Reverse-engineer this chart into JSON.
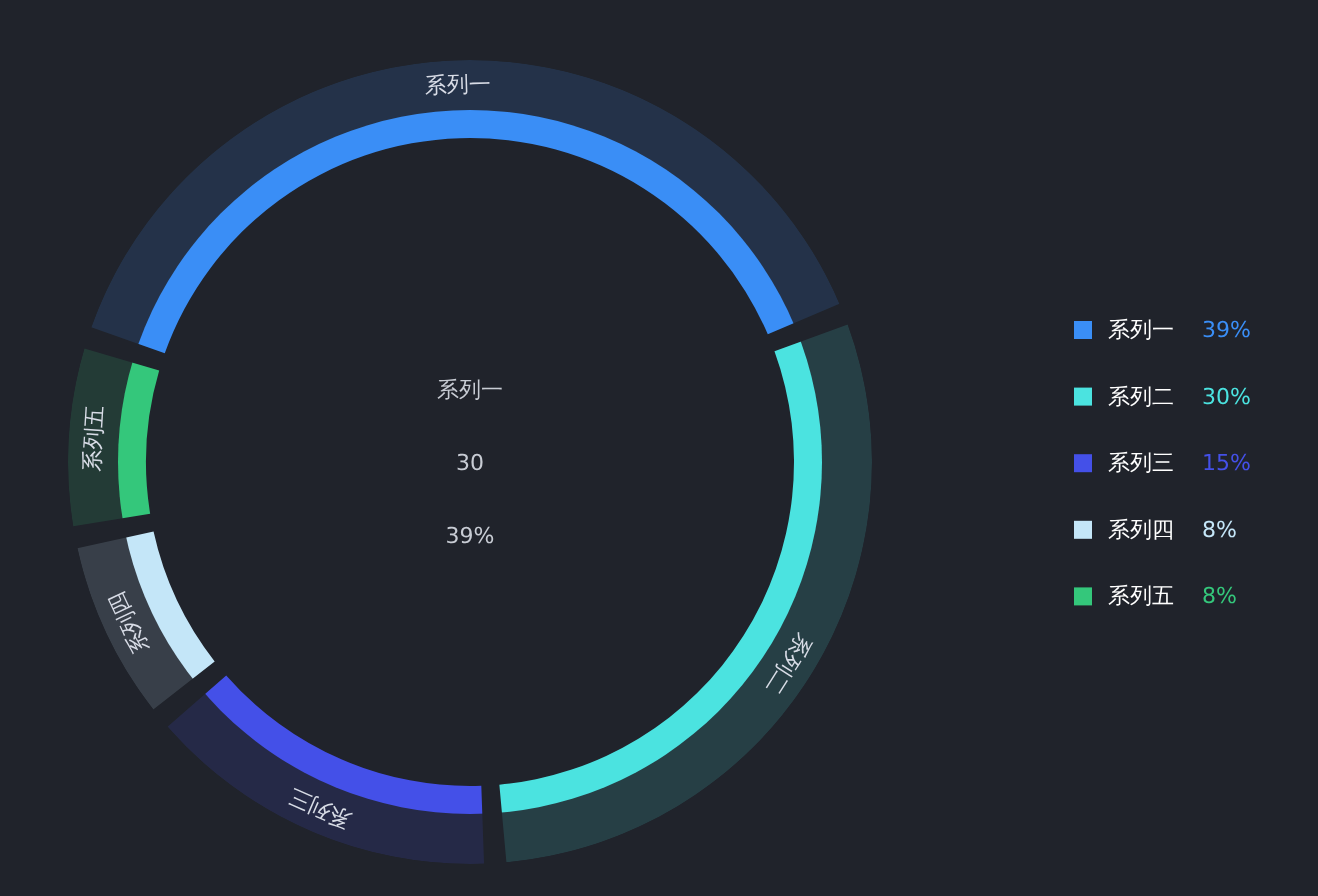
{
  "chart_data": {
    "type": "donut",
    "categories": [
      "系列一",
      "系列二",
      "系列三",
      "系列四",
      "系列五"
    ],
    "values": [
      39,
      30,
      15,
      8,
      8
    ],
    "value_labels": [
      "39%",
      "30%",
      "15%",
      "8%",
      "8%"
    ],
    "colors": [
      "#3a8ef6",
      "#4be3e0",
      "#4450e8",
      "#c4e6f8",
      "#34c77b"
    ],
    "legend": "right",
    "annotations": [
      "系列一",
      "30",
      "39%"
    ]
  }
}
